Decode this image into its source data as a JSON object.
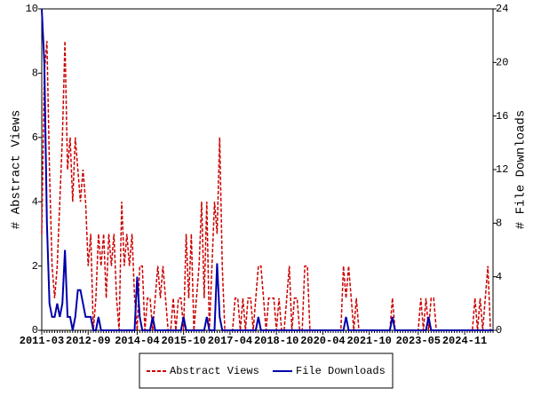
{
  "chart_data": {
    "type": "line",
    "categories": [
      "2011-03",
      null,
      null,
      null,
      null,
      null,
      null,
      null,
      null,
      null,
      null,
      null,
      null,
      null,
      null,
      null,
      null,
      null,
      "2012-09",
      null,
      null,
      null,
      null,
      null,
      null,
      null,
      null,
      null,
      null,
      null,
      null,
      null,
      null,
      null,
      null,
      null,
      null,
      "2014-04",
      null,
      null,
      null,
      null,
      null,
      null,
      null,
      null,
      null,
      null,
      null,
      null,
      null,
      null,
      null,
      null,
      null,
      "2015-10",
      null,
      null,
      null,
      null,
      null,
      null,
      null,
      null,
      null,
      null,
      null,
      null,
      null,
      null,
      null,
      null,
      null,
      "2017-04",
      null,
      null,
      null,
      null,
      null,
      null,
      null,
      null,
      null,
      null,
      null,
      null,
      null,
      null,
      null,
      null,
      null,
      "2018-10",
      null,
      null,
      null,
      null,
      null,
      null,
      null,
      null,
      null,
      null,
      null,
      null,
      null,
      null,
      null,
      null,
      null,
      "2020-04",
      null,
      null,
      null,
      null,
      null,
      null,
      null,
      null,
      null,
      null,
      null,
      null,
      null,
      null,
      null,
      null,
      null,
      "2021-10",
      null,
      null,
      null,
      null,
      null,
      null,
      null,
      null,
      null,
      null,
      null,
      null,
      null,
      null,
      null,
      null,
      null,
      null,
      "2023-05",
      null,
      null,
      null,
      null,
      null,
      null,
      null,
      null,
      null,
      null,
      null,
      null,
      null,
      null,
      null,
      null,
      null,
      "2024-11",
      null,
      null,
      null,
      null,
      null,
      null,
      null,
      null,
      null,
      null,
      null
    ],
    "series": [
      {
        "name": "Abstract Views",
        "color": "#cc0000",
        "dash": true,
        "values": [
          3,
          8,
          9,
          5,
          2,
          1,
          2,
          4,
          6,
          9,
          5,
          6,
          4,
          6,
          5,
          4,
          5,
          4,
          2,
          3,
          0,
          1,
          3,
          2,
          3,
          1,
          3,
          2,
          3,
          1,
          0,
          4,
          2,
          3,
          2,
          3,
          1,
          0,
          2,
          2,
          0,
          1,
          1,
          0,
          1,
          2,
          1,
          2,
          1,
          0,
          0,
          1,
          0,
          1,
          1,
          0,
          3,
          1,
          3,
          0,
          1,
          2,
          4,
          1,
          4,
          0,
          2,
          4,
          3,
          6,
          2,
          0,
          0,
          0,
          0,
          1,
          1,
          0,
          1,
          0,
          1,
          1,
          0,
          1,
          2,
          2,
          1,
          0,
          1,
          1,
          1,
          0,
          1,
          0,
          0,
          1,
          2,
          0,
          1,
          1,
          0,
          0,
          2,
          2,
          0,
          0,
          0,
          0,
          0,
          0,
          0,
          0,
          0,
          0,
          0,
          0,
          0,
          2,
          1,
          2,
          1,
          0,
          1,
          0,
          0,
          0,
          0,
          0,
          0,
          0,
          0,
          0,
          0,
          0,
          0,
          0,
          1,
          0,
          0,
          0,
          0,
          0,
          0,
          0,
          0,
          0,
          0,
          1,
          0,
          1,
          0,
          1,
          1,
          0,
          0,
          0,
          0,
          0,
          0,
          0,
          0,
          0,
          0,
          0,
          0,
          0,
          0,
          0,
          1,
          0,
          1,
          0,
          1,
          2,
          0,
          0
        ]
      },
      {
        "name": "File Downloads",
        "color": "#0000aa",
        "axis": "y2",
        "values": [
          24,
          20,
          8,
          2,
          1,
          1,
          2,
          1,
          2,
          6,
          1,
          1,
          0,
          1,
          3,
          3,
          2,
          1,
          1,
          1,
          0,
          0,
          1,
          0,
          0,
          0,
          0,
          0,
          0,
          0,
          0,
          0,
          0,
          0,
          0,
          0,
          0,
          4,
          1,
          0,
          0,
          0,
          0,
          1,
          0,
          0,
          0,
          0,
          0,
          0,
          0,
          0,
          0,
          0,
          0,
          1,
          0,
          0,
          0,
          0,
          0,
          0,
          0,
          0,
          1,
          0,
          0,
          0,
          5,
          1,
          0,
          0,
          0,
          0,
          0,
          0,
          0,
          0,
          0,
          0,
          0,
          0,
          0,
          0,
          1,
          0,
          0,
          0,
          0,
          0,
          0,
          0,
          0,
          0,
          0,
          0,
          0,
          0,
          0,
          0,
          0,
          0,
          0,
          0,
          0,
          0,
          0,
          0,
          0,
          0,
          0,
          0,
          0,
          0,
          0,
          0,
          0,
          0,
          1,
          0,
          0,
          0,
          0,
          0,
          0,
          0,
          0,
          0,
          0,
          0,
          0,
          0,
          0,
          0,
          0,
          0,
          1,
          0,
          0,
          0,
          0,
          0,
          0,
          0,
          0,
          0,
          0,
          0,
          0,
          0,
          1,
          0,
          0,
          0,
          0,
          0,
          0,
          0,
          0,
          0,
          0,
          0,
          0,
          0,
          0,
          0,
          0,
          0,
          0,
          0,
          0,
          0,
          0,
          0,
          0,
          0
        ]
      }
    ],
    "y_label": "# Abstract Views",
    "y2_label": "# File Downloads",
    "ylim": [
      0,
      10
    ],
    "yticks": [
      0,
      2,
      4,
      6,
      8,
      10
    ],
    "y2lim": [
      0,
      24
    ],
    "y2ticks": [
      0,
      4,
      8,
      12,
      16,
      20,
      24
    ],
    "legend": "bottom"
  }
}
